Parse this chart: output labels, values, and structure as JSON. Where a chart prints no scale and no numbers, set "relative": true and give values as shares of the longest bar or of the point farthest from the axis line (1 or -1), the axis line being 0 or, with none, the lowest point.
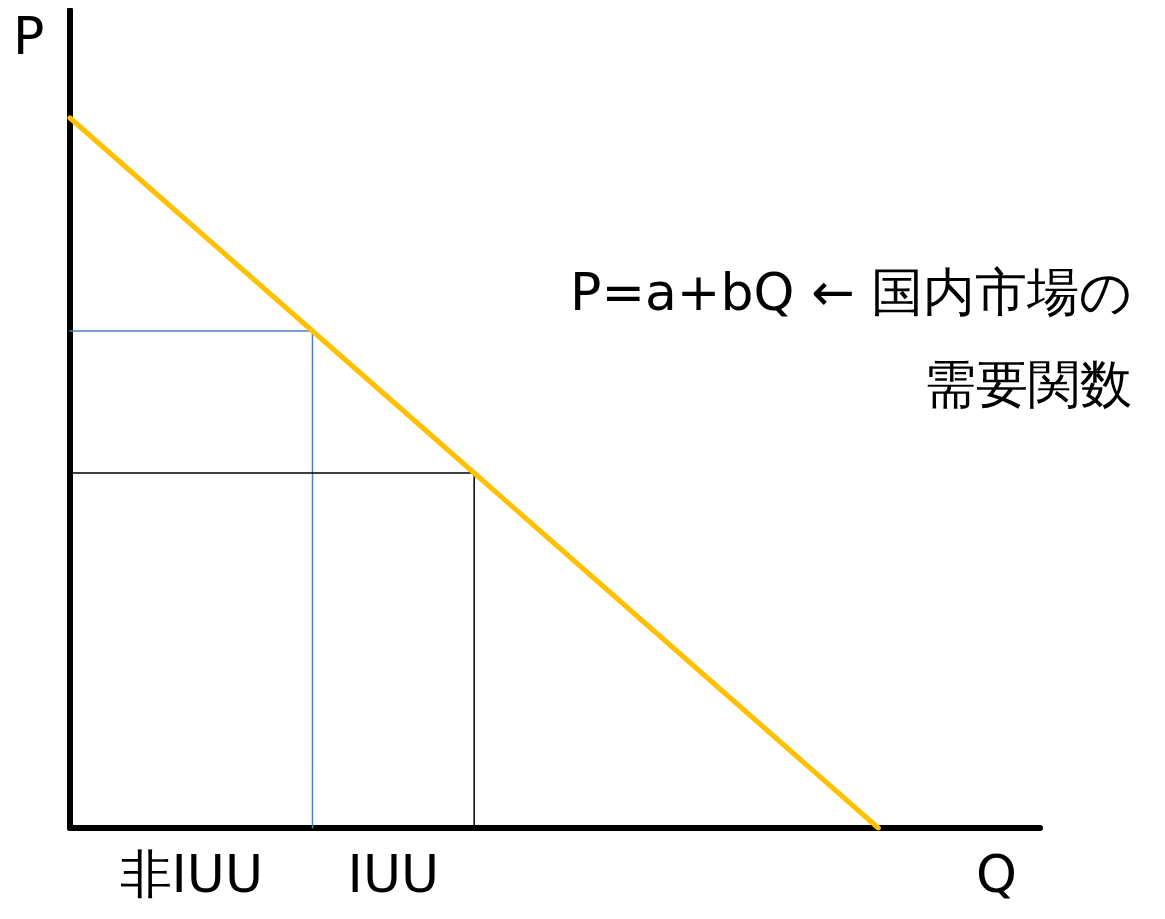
{
  "chart_data": {
    "type": "line",
    "relative": true,
    "xlabel": "Q",
    "ylabel": "P",
    "grid": false,
    "marker": "none",
    "line_style": "solid",
    "categories": [
      null,
      null,
      null,
      null,
      null,
      null,
      null,
      null,
      null,
      null,
      null,
      null,
      null
    ],
    "series": [
      {
        "color": "#ffc000",
        "values": [
          1,
          0.9,
          0.8,
          0.7,
          0.6,
          0.5,
          0.4,
          0.3,
          0.2,
          0.1,
          0,
          null,
          null
        ]
      },
      {
        "type": "step",
        "color": "#4f81bd",
        "values": [
          0.7,
          0.7,
          0.7,
          0,
          null,
          null,
          null,
          null,
          null,
          null,
          null,
          null,
          null
        ]
      },
      {
        "type": "step",
        "color": "#000000",
        "values": [
          0.5,
          0.5,
          0.5,
          0.5,
          0.5,
          0,
          null,
          null,
          null,
          null,
          null,
          null,
          null
        ]
      }
    ],
    "annotations": [
      "P=a+bQ ← 国内市場の需要関数",
      "非IUU",
      "IUU"
    ]
  }
}
